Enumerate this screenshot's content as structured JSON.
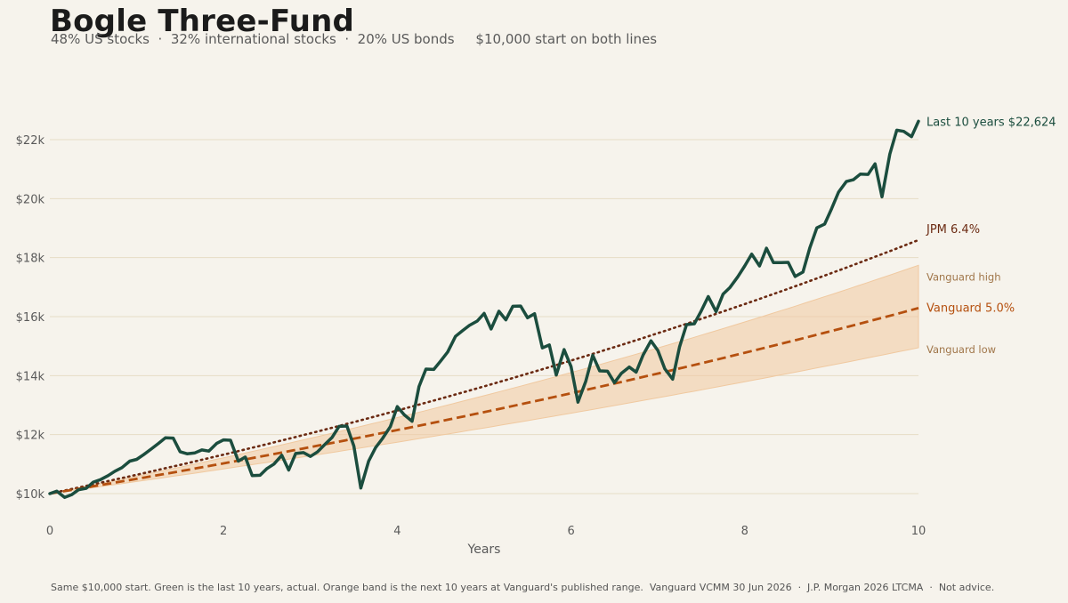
{
  "header": {
    "title": "Bogle Three-Fund",
    "subtitle": "48% US stocks  ·  32% international stocks  ·  20% US bonds     $10,000 start on both lines"
  },
  "footer": {
    "note": "Same $10,000 start. Green is the last 10 years, actual. Orange band is the next 10 years at Vanguard's published range.  Vanguard VCMM 30 Jun 2026  ·  J.P. Morgan 2026 LTCMA  ·  Not advice."
  },
  "chart_data": {
    "type": "line",
    "xlabel": "Years",
    "ylabel": "",
    "xlim": [
      0,
      10
    ],
    "ylim": [
      9300,
      23300
    ],
    "x_ticks": [
      0,
      2,
      4,
      6,
      8,
      10
    ],
    "x_tick_labels": [
      "0",
      "2",
      "4",
      "6",
      "8",
      "10"
    ],
    "y_ticks": [
      10000,
      12000,
      14000,
      16000,
      18000,
      20000,
      22000
    ],
    "y_tick_labels": [
      "$10k",
      "$12k",
      "$14k",
      "$16k",
      "$18k",
      "$20k",
      "$22k"
    ],
    "grid": "horizontal",
    "colors": {
      "actual": "#1b4d3e",
      "jpm": "#6b2a12",
      "vanguard": "#b5500f",
      "band": "#f0c9a0",
      "band_label": "#a0764a",
      "grid": "#e6dcc6"
    },
    "series": [
      {
        "name": "Last 10 years",
        "end_label": "$22,624",
        "style": "solid",
        "x": [
          0,
          0.08,
          0.17,
          0.25,
          0.33,
          0.42,
          0.5,
          0.58,
          0.67,
          0.75,
          0.83,
          0.92,
          1.0,
          1.08,
          1.17,
          1.25,
          1.33,
          1.42,
          1.5,
          1.58,
          1.67,
          1.75,
          1.83,
          1.92,
          2.0,
          2.08,
          2.17,
          2.25,
          2.33,
          2.42,
          2.5,
          2.58,
          2.67,
          2.75,
          2.83,
          2.92,
          3.0,
          3.08,
          3.17,
          3.25,
          3.33,
          3.42,
          3.5,
          3.58,
          3.67,
          3.75,
          3.83,
          3.92,
          4.0,
          4.08,
          4.17,
          4.25,
          4.33,
          4.42,
          4.5,
          4.58,
          4.67,
          4.75,
          4.83,
          4.92,
          5.0,
          5.08,
          5.17,
          5.25,
          5.33,
          5.42,
          5.5,
          5.58,
          5.67,
          5.75,
          5.83,
          5.92,
          6.0,
          6.08,
          6.17,
          6.25,
          6.33,
          6.42,
          6.5,
          6.58,
          6.67,
          6.75,
          6.83,
          6.92,
          7.0,
          7.08,
          7.17,
          7.25,
          7.33,
          7.42,
          7.5,
          7.58,
          7.67,
          7.75,
          7.83,
          7.92,
          8.0,
          8.08,
          8.17,
          8.25,
          8.33,
          8.42,
          8.5,
          8.58,
          8.67,
          8.75,
          8.83,
          8.92,
          9.0,
          9.08,
          9.17,
          9.25,
          9.33,
          9.42,
          9.5,
          9.58,
          9.67,
          9.75,
          9.83,
          9.92,
          10.0
        ],
        "values": [
          10000,
          10080,
          9870,
          9960,
          10130,
          10180,
          10390,
          10470,
          10610,
          10760,
          10880,
          11100,
          11160,
          11320,
          11520,
          11700,
          11890,
          11880,
          11420,
          11350,
          11380,
          11480,
          11440,
          11700,
          11820,
          11810,
          11100,
          11240,
          10610,
          10620,
          10850,
          11000,
          11300,
          10800,
          11360,
          11390,
          11260,
          11410,
          11680,
          11910,
          12280,
          12290,
          11610,
          10190,
          11100,
          11560,
          11870,
          12270,
          12950,
          12670,
          12450,
          13630,
          14220,
          14210,
          14500,
          14800,
          15330,
          15520,
          15700,
          15850,
          16110,
          15580,
          16180,
          15890,
          16350,
          16360,
          15960,
          16100,
          14940,
          15040,
          14020,
          14880,
          14310,
          13100,
          13810,
          14690,
          14160,
          14150,
          13760,
          14080,
          14290,
          14120,
          14700,
          15180,
          14850,
          14230,
          13880,
          14980,
          15730,
          15760,
          16200,
          16680,
          16170,
          16760,
          16990,
          17350,
          17720,
          18120,
          17720,
          18320,
          17830,
          17830,
          17840,
          17360,
          17510,
          18340,
          19010,
          19140,
          19660,
          20220,
          20580,
          20640,
          20830,
          20820,
          21180,
          20060,
          21510,
          22320,
          22280,
          22100,
          22624
        ]
      },
      {
        "name": "JPM",
        "end_label": "6.4%",
        "style": "dotted",
        "rate": 0.064
      },
      {
        "name": "Vanguard",
        "end_label": "5.0%",
        "style": "dashed",
        "rate": 0.05
      }
    ],
    "band": {
      "low_label": "Vanguard low",
      "high_label": "Vanguard high",
      "low_rate": 0.041,
      "high_rate": 0.059
    }
  }
}
